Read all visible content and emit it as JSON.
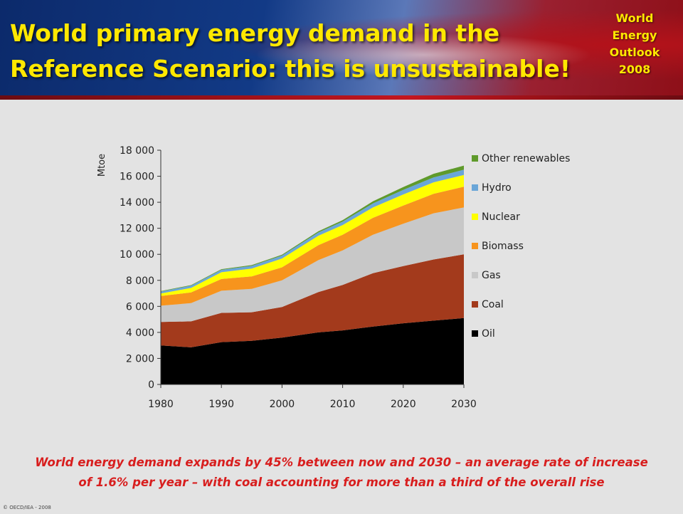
{
  "header": {
    "title_line1": "World primary energy demand in the",
    "title_line2": "Reference Scenario: this is unsustainable!",
    "badge_line1": "World",
    "badge_line2": "Energy",
    "badge_line3": "Outlook",
    "badge_line4": "2008"
  },
  "caption": {
    "line1": "World energy demand expands by 45% between now and 2030 – an average rate of increase",
    "line2": "of 1.6% per year – with coal accounting for more than a third of the overall rise"
  },
  "copyright": "© OECD/IEA - 2008",
  "chart_data": {
    "type": "area",
    "stacked": true,
    "title": "",
    "xlabel": "",
    "ylabel": "Mtoe",
    "xlim": [
      1980,
      2030
    ],
    "ylim": [
      0,
      18000
    ],
    "x_ticks": [
      "1980",
      "1990",
      "2000",
      "2010",
      "2020",
      "2030"
    ],
    "y_ticks": [
      "0",
      "2 000",
      "4 000",
      "6 000",
      "8 000",
      "10 000",
      "12 000",
      "14 000",
      "16 000",
      "18 000"
    ],
    "legend_position": "right",
    "grid": false,
    "x": [
      1980,
      1985,
      1990,
      1995,
      2000,
      2006,
      2010,
      2015,
      2020,
      2025,
      2030
    ],
    "series": [
      {
        "name": "Oil",
        "color": "#000000",
        "values": [
          3000,
          2850,
          3250,
          3350,
          3600,
          4000,
          4150,
          4450,
          4700,
          4900,
          5100
        ]
      },
      {
        "name": "Coal",
        "color": "#a33a1c",
        "values": [
          1800,
          2000,
          2250,
          2200,
          2350,
          3100,
          3500,
          4100,
          4400,
          4700,
          4900
        ]
      },
      {
        "name": "Gas",
        "color": "#c8c8c8",
        "values": [
          1250,
          1400,
          1700,
          1800,
          2050,
          2450,
          2650,
          2950,
          3250,
          3550,
          3600
        ]
      },
      {
        "name": "Biomass",
        "color": "#f7941d",
        "values": [
          750,
          820,
          900,
          950,
          1000,
          1150,
          1200,
          1300,
          1400,
          1500,
          1600
        ]
      },
      {
        "name": "Nuclear",
        "color": "#ffff00",
        "values": [
          190,
          350,
          520,
          600,
          680,
          730,
          750,
          800,
          850,
          880,
          900
        ]
      },
      {
        "name": "Hydro",
        "color": "#6aa6d8",
        "values": [
          150,
          170,
          190,
          210,
          220,
          250,
          270,
          310,
          350,
          380,
          400
        ]
      },
      {
        "name": "Other renewables",
        "color": "#5f9a2b",
        "values": [
          30,
          40,
          50,
          60,
          70,
          90,
          110,
          160,
          220,
          280,
          320
        ]
      }
    ]
  }
}
